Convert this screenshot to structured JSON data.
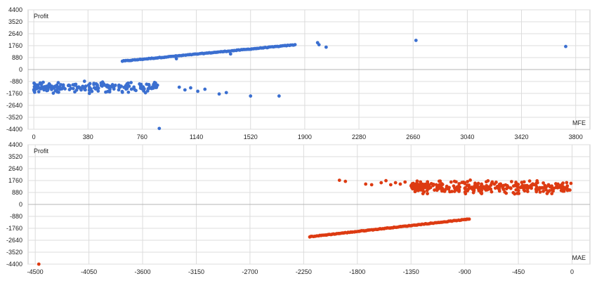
{
  "chart_data": [
    {
      "type": "scatter",
      "ylabel": "Profit",
      "xlabel": "MFE",
      "grid": true,
      "color": "#3b6fd0",
      "xlim": [
        -40,
        3900
      ],
      "ylim": [
        -4400,
        4400
      ],
      "x_ticks": [
        0,
        380,
        760,
        1140,
        1520,
        1900,
        2280,
        2660,
        3040,
        3420,
        3800
      ],
      "y_ticks": [
        4400,
        3520,
        2640,
        1760,
        880,
        0,
        -880,
        -1760,
        -2640,
        -3520,
        -4400
      ],
      "cluster_line": {
        "x_start": 620,
        "x_end": 1830,
        "y_start": 620,
        "y_end": 1820,
        "count": 130
      },
      "cluster_neg": {
        "x_min": 0,
        "x_max": 880,
        "y_center": -1300,
        "y_spread": 330,
        "count": 200
      },
      "outliers": [
        [
          1000,
          800
        ],
        [
          1380,
          1150
        ],
        [
          1990,
          1980
        ],
        [
          2000,
          1830
        ],
        [
          2050,
          1650
        ],
        [
          2680,
          2150
        ],
        [
          3730,
          1700
        ],
        [
          880,
          -4340
        ],
        [
          1020,
          -1300
        ],
        [
          1060,
          -1500
        ],
        [
          1100,
          -1350
        ],
        [
          1150,
          -1600
        ],
        [
          1200,
          -1450
        ],
        [
          1300,
          -1800
        ],
        [
          1350,
          -1700
        ],
        [
          1520,
          -1950
        ],
        [
          1720,
          -1950
        ]
      ]
    },
    {
      "type": "scatter",
      "ylabel": "Profit",
      "xlabel": "MAE",
      "grid": true,
      "color": "#dd3b12",
      "xlim": [
        -4560,
        150
      ],
      "ylim": [
        -4400,
        4400
      ],
      "x_ticks": [
        -4500,
        -4050,
        -3600,
        -3150,
        -2700,
        -2250,
        -1800,
        -1350,
        -900,
        -450,
        0
      ],
      "y_ticks": [
        4400,
        3520,
        2640,
        1760,
        880,
        0,
        -880,
        -1760,
        -2640,
        -3520,
        -4400
      ],
      "cluster_line": {
        "x_start": -2200,
        "x_end": -860,
        "y_start": -2380,
        "y_end": -1080,
        "count": 130
      },
      "cluster_pos": {
        "x_min": -1350,
        "x_max": 0,
        "y_center": 1250,
        "y_spread": 380,
        "count": 320
      },
      "outliers": [
        [
          -4470,
          -4400
        ],
        [
          -1950,
          1780
        ],
        [
          -1900,
          1700
        ],
        [
          -1730,
          1500
        ],
        [
          -1680,
          1450
        ],
        [
          -1600,
          1600
        ],
        [
          -1560,
          1750
        ],
        [
          -1520,
          1450
        ],
        [
          -1480,
          1600
        ],
        [
          -1440,
          1500
        ],
        [
          -1400,
          1650
        ]
      ]
    }
  ]
}
